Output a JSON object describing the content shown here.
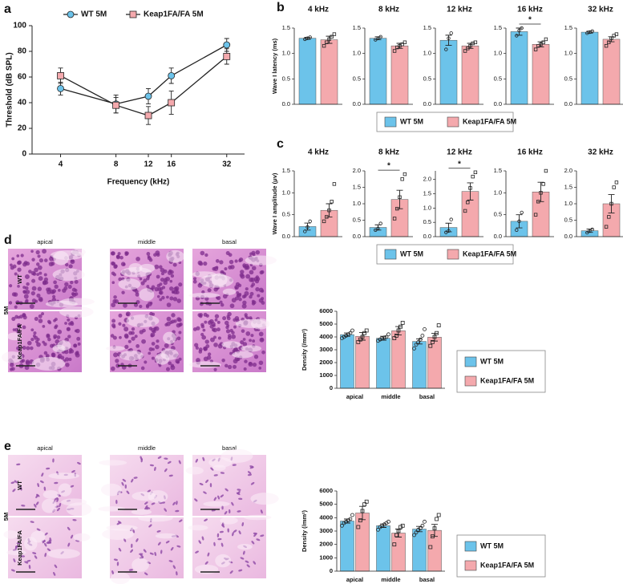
{
  "chart_data": [
    {
      "type": "line",
      "panel": "a",
      "xlabel": "Frequency (kHz)",
      "ylabel": "Threshold (dB SPL)",
      "x": [
        4,
        8,
        12,
        16,
        32
      ],
      "xlim": [
        2.8,
        40
      ],
      "xscale": "log",
      "xticks": [
        4,
        8,
        12,
        16,
        32
      ],
      "ylim": [
        0,
        100
      ],
      "yticks": [
        0,
        20,
        40,
        60,
        80,
        100
      ],
      "series": [
        {
          "name": "WT 5M",
          "color": "#6cc3ea",
          "marker": "circle",
          "values": [
            51,
            39,
            45,
            61,
            85
          ],
          "errors": [
            5,
            7,
            6,
            6,
            5
          ]
        },
        {
          "name": "Keap1FA/FA 5M",
          "color": "#f4a9ad",
          "marker": "square",
          "values": [
            61,
            38,
            30,
            40,
            76
          ],
          "errors": [
            6,
            6,
            7,
            9,
            6
          ]
        }
      ]
    },
    {
      "type": "faceted-bar",
      "panel": "b",
      "ylabel": "Wave I latency (ms)",
      "facets": [
        {
          "title": "4 kHz",
          "ylim": [
            0,
            1.5
          ],
          "yticks": [
            {
              "value": 0,
              "label": "0.0"
            },
            {
              "value": 0.5,
              "label": "0.5"
            },
            {
              "value": 1,
              "label": "1.0"
            },
            {
              "value": 1.5,
              "label": "1.5"
            }
          ]
        },
        {
          "title": "8 kHz",
          "ylim": [
            0,
            1.5
          ],
          "yticks": [
            {
              "value": 0,
              "label": "0.0"
            },
            {
              "value": 0.5,
              "label": "0.5"
            },
            {
              "value": 1,
              "label": "1.0"
            },
            {
              "value": 1.5,
              "label": "1.5"
            }
          ]
        },
        {
          "title": "12 kHz",
          "ylim": [
            0,
            1.5
          ],
          "yticks": [
            {
              "value": 0,
              "label": "0.0"
            },
            {
              "value": 0.5,
              "label": "0.5"
            },
            {
              "value": 1,
              "label": "1.0"
            },
            {
              "value": 1.5,
              "label": "1.5"
            }
          ]
        },
        {
          "title": "16 kHz",
          "ylim": [
            0,
            1.5
          ],
          "yticks": [
            {
              "value": 0,
              "label": "0.0"
            },
            {
              "value": 0.5,
              "label": "0.5"
            },
            {
              "value": 1,
              "label": "1.0"
            },
            {
              "value": 1.5,
              "label": "1.5"
            }
          ],
          "significance": "*"
        },
        {
          "title": "32 kHz",
          "ylim": [
            0,
            1.5
          ],
          "yticks": [
            {
              "value": 0,
              "label": "0.0"
            },
            {
              "value": 0.5,
              "label": "0.5"
            },
            {
              "value": 1,
              "label": "1.0"
            },
            {
              "value": 1.5,
              "label": "1.5"
            }
          ]
        }
      ],
      "series": [
        {
          "name": "WT 5M",
          "color": "#6cc3ea",
          "marker": "circle",
          "values": [
            1.3,
            1.3,
            1.26,
            1.43,
            1.42
          ],
          "errors": [
            0.02,
            0.03,
            0.1,
            0.07,
            0.02
          ],
          "points": [
            [
              1.28,
              1.3,
              1.32
            ],
            [
              1.27,
              1.3,
              1.33
            ],
            [
              1.08,
              1.3,
              1.4
            ],
            [
              1.35,
              1.45,
              1.5
            ],
            [
              1.4,
              1.42,
              1.44
            ]
          ]
        },
        {
          "name": "Keap1FA/FA 5M",
          "color": "#f4a9ad",
          "marker": "square",
          "values": [
            1.27,
            1.15,
            1.15,
            1.18,
            1.28
          ],
          "errors": [
            0.07,
            0.05,
            0.05,
            0.05,
            0.05
          ],
          "points": [
            [
              1.15,
              1.22,
              1.28,
              1.33,
              1.38
            ],
            [
              1.05,
              1.12,
              1.15,
              1.18,
              1.22
            ],
            [
              1.05,
              1.1,
              1.15,
              1.2,
              1.22
            ],
            [
              1.08,
              1.15,
              1.18,
              1.22,
              1.28
            ],
            [
              1.15,
              1.22,
              1.3,
              1.35,
              1.38
            ]
          ]
        }
      ]
    },
    {
      "type": "faceted-bar",
      "panel": "c",
      "ylabel": "Wave I amplitude (μv)",
      "facets": [
        {
          "title": "4 kHz",
          "ylim": [
            0,
            1.5
          ],
          "yticks": [
            {
              "value": 0,
              "label": "0.0"
            },
            {
              "value": 0.5,
              "label": "0.5"
            },
            {
              "value": 1,
              "label": "1.0"
            },
            {
              "value": 1.5,
              "label": "1.5"
            }
          ]
        },
        {
          "title": "8 kHz",
          "ylim": [
            0,
            2
          ],
          "yticks": [
            {
              "value": 0,
              "label": "0.0"
            },
            {
              "value": 0.5,
              "label": "0.5"
            },
            {
              "value": 1,
              "label": "1.0"
            },
            {
              "value": 1.5,
              "label": "1.5"
            },
            {
              "value": 2,
              "label": "2.0"
            }
          ],
          "significance": "*"
        },
        {
          "title": "12 kHz",
          "ylim": [
            0,
            2.3
          ],
          "yticks": [
            {
              "value": 0,
              "label": "0.0"
            },
            {
              "value": 0.5,
              "label": "0.5"
            },
            {
              "value": 1,
              "label": "1.0"
            },
            {
              "value": 1.5,
              "label": "1.5"
            },
            {
              "value": 2,
              "label": "2.0"
            }
          ],
          "significance": "*"
        },
        {
          "title": "16 kHz",
          "ylim": [
            0,
            1.5
          ],
          "yticks": [
            {
              "value": 0,
              "label": "0.0"
            },
            {
              "value": 0.5,
              "label": "0.5"
            },
            {
              "value": 1,
              "label": "1.0"
            },
            {
              "value": 1.5,
              "label": "1.5"
            }
          ]
        },
        {
          "title": "32 kHz",
          "ylim": [
            0,
            2
          ],
          "yticks": [
            {
              "value": 0,
              "label": "0.0"
            },
            {
              "value": 0.5,
              "label": "0.5"
            },
            {
              "value": 1,
              "label": "1.0"
            },
            {
              "value": 1.5,
              "label": "1.5"
            },
            {
              "value": 2,
              "label": "2.0"
            }
          ]
        }
      ],
      "series": [
        {
          "name": "WT 5M",
          "color": "#6cc3ea",
          "marker": "circle",
          "values": [
            0.23,
            0.28,
            0.32,
            0.35,
            0.18
          ],
          "errors": [
            0.08,
            0.08,
            0.15,
            0.15,
            0.05
          ],
          "points": [
            [
              0.12,
              0.22,
              0.35
            ],
            [
              0.2,
              0.25,
              0.4
            ],
            [
              0.15,
              0.2,
              0.6
            ],
            [
              0.15,
              0.35,
              0.55
            ],
            [
              0.12,
              0.18,
              0.22
            ]
          ]
        },
        {
          "name": "Keap1FA/FA 5M",
          "color": "#f4a9ad",
          "marker": "square",
          "values": [
            0.6,
            1.13,
            1.58,
            1.02,
            1.0
          ],
          "errors": [
            0.15,
            0.28,
            0.3,
            0.22,
            0.28
          ],
          "points": [
            [
              0.35,
              0.45,
              0.6,
              0.8,
              1.2
            ],
            [
              0.55,
              0.85,
              1.2,
              1.75,
              1.9
            ],
            [
              0.9,
              1.2,
              1.7,
              2.1,
              2.25
            ],
            [
              0.5,
              0.8,
              1.0,
              1.2,
              1.5
            ],
            [
              0.3,
              0.6,
              1.0,
              1.5,
              1.65
            ]
          ]
        }
      ]
    },
    {
      "type": "grouped-bar",
      "panel": "d",
      "ylabel": "Density (/mm²)",
      "categories": [
        "apical",
        "middle",
        "basal"
      ],
      "ylim": [
        0,
        6000
      ],
      "yticks": [
        0,
        1000,
        2000,
        3000,
        4000,
        5000,
        6000
      ],
      "series": [
        {
          "name": "WT 5M",
          "color": "#6cc3ea",
          "marker": "circle",
          "values": [
            4180,
            3900,
            3650
          ],
          "errors": [
            130,
            150,
            200
          ],
          "points": [
            [
              3900,
              4000,
              4100,
              4200,
              4300,
              4500
            ],
            [
              3700,
              3800,
              3900,
              3950,
              4000,
              4200
            ],
            [
              3100,
              3400,
              3600,
              3800,
              4100,
              4600
            ]
          ]
        },
        {
          "name": "Keap1FA/FA 5M",
          "color": "#f4a9ad",
          "marker": "square",
          "values": [
            4050,
            4480,
            3980
          ],
          "errors": [
            300,
            330,
            300
          ],
          "points": [
            [
              3600,
              3800,
              4000,
              4300,
              4500
            ],
            [
              3900,
              4100,
              4500,
              4800,
              5100
            ],
            [
              3300,
              3600,
              4000,
              4300,
              4900
            ]
          ]
        }
      ]
    },
    {
      "type": "grouped-bar",
      "panel": "e",
      "ylabel": "Density (/mm²)",
      "categories": [
        "apical",
        "middle",
        "basal"
      ],
      "ylim": [
        0,
        6000
      ],
      "yticks": [
        0,
        1000,
        2000,
        3000,
        4000,
        5000,
        6000
      ],
      "series": [
        {
          "name": "WT 5M",
          "color": "#6cc3ea",
          "marker": "circle",
          "values": [
            3750,
            3400,
            3150
          ],
          "errors": [
            150,
            130,
            200
          ],
          "points": [
            [
              3400,
              3600,
              3700,
              3800,
              3900,
              4200
            ],
            [
              3100,
              3300,
              3400,
              3500,
              3600,
              3700
            ],
            [
              2700,
              2900,
              3100,
              3200,
              3400,
              3700
            ]
          ]
        },
        {
          "name": "Keap1FA/FA 5M",
          "color": "#f4a9ad",
          "marker": "square",
          "values": [
            4350,
            2850,
            3050
          ],
          "errors": [
            500,
            300,
            450
          ],
          "points": [
            [
              3300,
              3800,
              4500,
              5000,
              5200
            ],
            [
              2000,
              2700,
              3000,
              3300,
              3400
            ],
            [
              1800,
              2600,
              3200,
              3900,
              4200
            ]
          ]
        }
      ]
    }
  ],
  "histology": [
    {
      "columns": [
        "apical",
        "middle",
        "basal"
      ],
      "rows": [
        "WT",
        "Keap1FA/FA"
      ],
      "group": "5M"
    },
    {
      "columns": [
        "apical",
        "middle",
        "basal"
      ],
      "rows": [
        "WT",
        "Keap1FA/FA"
      ],
      "group": "5M"
    }
  ]
}
